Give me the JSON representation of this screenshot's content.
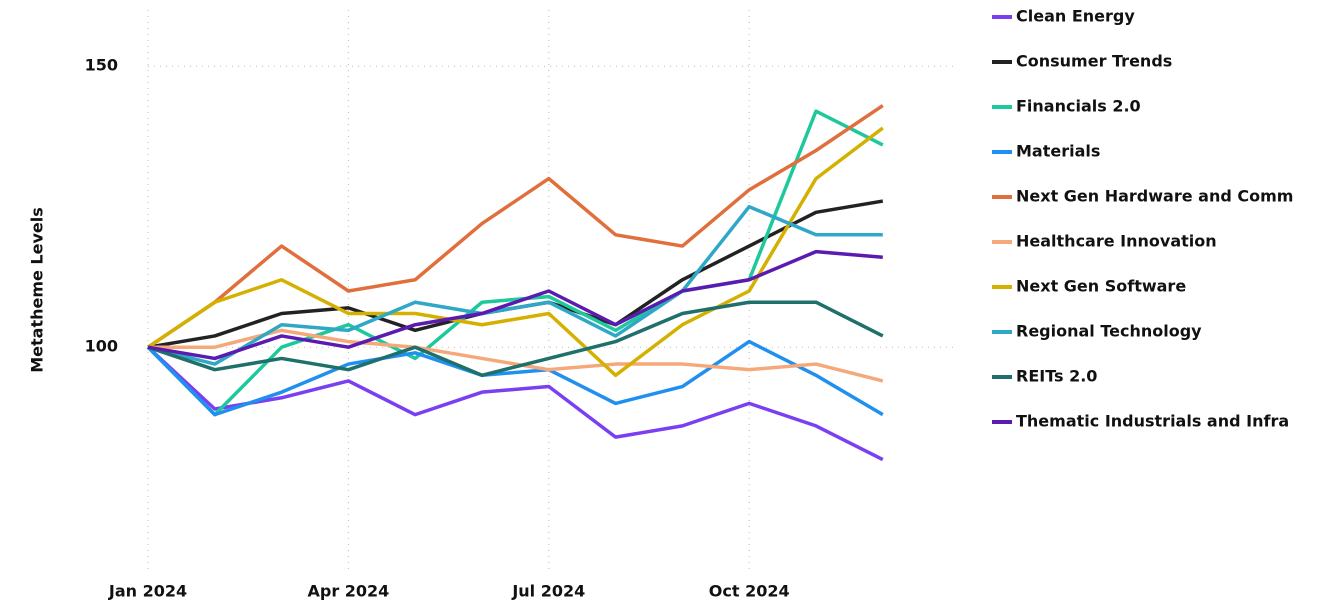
{
  "chart_data": {
    "type": "line",
    "y_label": "Metatheme Levels",
    "x": [
      "2024-01",
      "2024-02",
      "2024-03",
      "2024-04",
      "2024-05",
      "2024-06",
      "2024-07",
      "2024-08",
      "2024-09",
      "2024-10",
      "2024-11",
      "2024-12"
    ],
    "xticks": [
      {
        "value": "2024-01",
        "label": "Jan 2024"
      },
      {
        "value": "2024-04",
        "label": "Apr 2024"
      },
      {
        "value": "2024-07",
        "label": "Jul 2024"
      },
      {
        "value": "2024-10",
        "label": "Oct 2024"
      }
    ],
    "ylim": [
      60,
      160
    ],
    "yticks": [
      100,
      150
    ],
    "grid": true,
    "legend": "right",
    "series": [
      {
        "name": "Clean Energy",
        "color": "#7b3ff2",
        "values": [
          100,
          89,
          91,
          94,
          88,
          92,
          93,
          84,
          86,
          90,
          86,
          80
        ]
      },
      {
        "name": "Consumer Trends",
        "color": "#222222",
        "values": [
          100,
          102,
          106,
          107,
          103,
          106,
          108,
          104,
          112,
          118,
          124,
          126
        ]
      },
      {
        "name": "Financials 2.0",
        "color": "#1dc99a",
        "values": [
          100,
          88,
          100,
          104,
          98,
          108,
          109,
          103,
          110,
          112,
          142,
          136
        ]
      },
      {
        "name": "Materials",
        "color": "#1f8ff0",
        "values": [
          100,
          88,
          92,
          97,
          99,
          95,
          96,
          90,
          93,
          101,
          95,
          88
        ]
      },
      {
        "name": "Next Gen Hardware and Comm",
        "color": "#e06f3c",
        "values": [
          100,
          108,
          118,
          110,
          112,
          122,
          130,
          120,
          118,
          128,
          135,
          143
        ]
      },
      {
        "name": "Healthcare Innovation",
        "color": "#f5a97a",
        "values": [
          100,
          100,
          103,
          101,
          100,
          98,
          96,
          97,
          97,
          96,
          97,
          94
        ]
      },
      {
        "name": "Next Gen Software",
        "color": "#d4b000",
        "values": [
          100,
          108,
          112,
          106,
          106,
          104,
          106,
          95,
          104,
          110,
          130,
          139
        ]
      },
      {
        "name": "Regional Technology",
        "color": "#2fa8c8",
        "values": [
          100,
          97,
          104,
          103,
          108,
          106,
          108,
          102,
          110,
          125,
          120,
          120
        ]
      },
      {
        "name": "REITs 2.0",
        "color": "#1f6f6b",
        "values": [
          100,
          96,
          98,
          96,
          100,
          95,
          98,
          101,
          106,
          108,
          108,
          102
        ]
      },
      {
        "name": "Thematic Industrials and Infra",
        "color": "#5b1bb0",
        "values": [
          100,
          98,
          102,
          100,
          104,
          106,
          110,
          104,
          110,
          112,
          117,
          116
        ]
      }
    ]
  }
}
